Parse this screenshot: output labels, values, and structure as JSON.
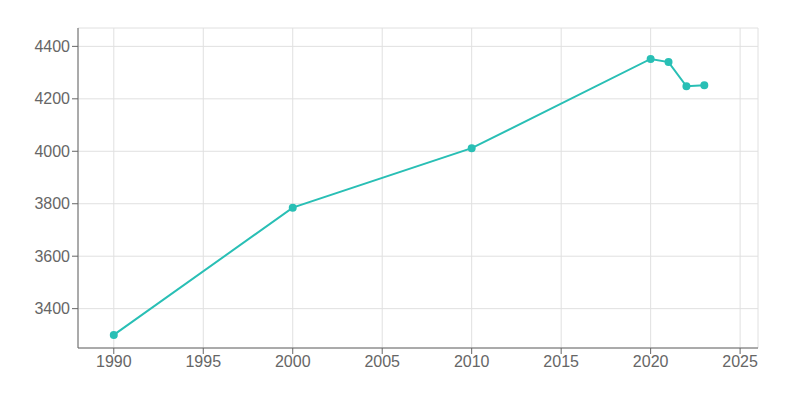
{
  "chart_data": {
    "type": "line",
    "x": [
      1990,
      2000,
      2010,
      2020,
      2021,
      2022,
      2023
    ],
    "values": [
      3300,
      3785,
      4012,
      4352,
      4340,
      4248,
      4252
    ],
    "color": "#29bfb5",
    "marker": "circle",
    "xlim": [
      1988,
      2026
    ],
    "ylim": [
      3250,
      4470
    ],
    "xticks": [
      1990,
      1995,
      2000,
      2005,
      2010,
      2015,
      2020,
      2025
    ],
    "yticks": [
      3400,
      3600,
      3800,
      4000,
      4200,
      4400
    ],
    "grid": true
  }
}
